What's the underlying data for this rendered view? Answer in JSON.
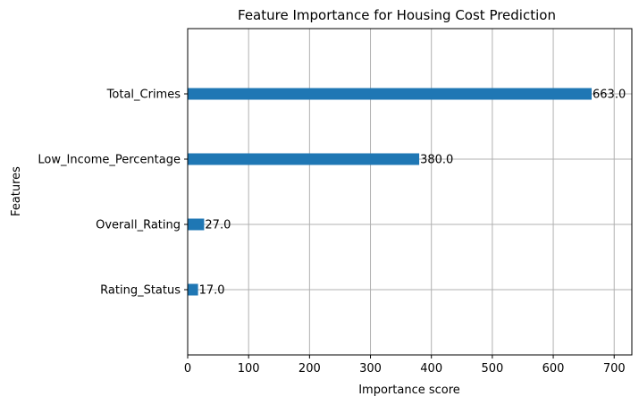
{
  "chart_data": {
    "type": "bar",
    "orientation": "horizontal",
    "title": "Feature Importance for Housing Cost Prediction",
    "xlabel": "Importance score",
    "ylabel": "Features",
    "categories": [
      "Total_Crimes",
      "Low_Income_Percentage",
      "Overall_Rating",
      "Rating_Status"
    ],
    "values": [
      663,
      380,
      27,
      17
    ],
    "value_labels": [
      "663.0",
      "380.0",
      "27.0",
      "17.0"
    ],
    "xlim": [
      0,
      729
    ],
    "xticks": [
      0,
      100,
      200,
      300,
      400,
      500,
      600,
      700
    ],
    "xtick_labels": [
      "0",
      "100",
      "200",
      "300",
      "400",
      "500",
      "600",
      "700"
    ],
    "grid": true,
    "bar_color": "#1f77b4",
    "grid_color": "#b0b0b0"
  }
}
